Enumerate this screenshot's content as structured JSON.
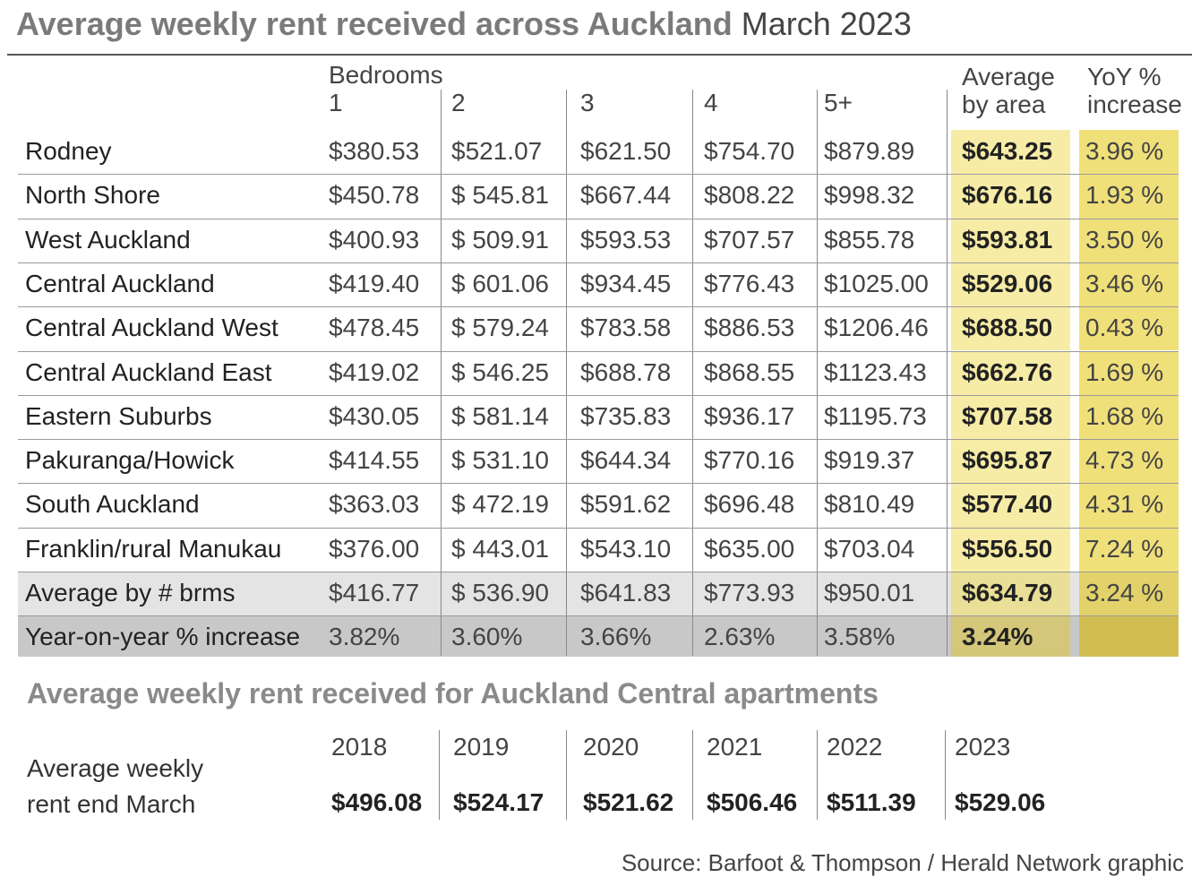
{
  "title": {
    "bold": "Average weekly rent received across Auckland",
    "date": "March 2023"
  },
  "table": {
    "bedrooms_label": "Bedrooms",
    "columns": [
      "1",
      "2",
      "3",
      "4",
      "5+"
    ],
    "average_header": "Average by area",
    "yoy_header": "YoY % increase",
    "rows": [
      {
        "name": "Rodney",
        "cells": [
          "$380.53",
          "$521.07",
          "$621.50",
          "$754.70",
          "$879.89"
        ],
        "average": "$643.25",
        "yoy": "3.96 %"
      },
      {
        "name": "North Shore",
        "cells": [
          "$450.78",
          "$ 545.81",
          "$667.44",
          "$808.22",
          "$998.32"
        ],
        "average": "$676.16",
        "yoy": "1.93 %"
      },
      {
        "name": "West Auckland",
        "cells": [
          "$400.93",
          "$ 509.91",
          "$593.53",
          "$707.57",
          "$855.78"
        ],
        "average": "$593.81",
        "yoy": "3.50 %"
      },
      {
        "name": "Central Auckland",
        "cells": [
          "$419.40",
          "$ 601.06",
          "$934.45",
          "$776.43",
          "$1025.00"
        ],
        "average": "$529.06",
        "yoy": "3.46 %"
      },
      {
        "name": "Central Auckland West",
        "cells": [
          "$478.45",
          "$ 579.24",
          "$783.58",
          "$886.53",
          "$1206.46"
        ],
        "average": "$688.50",
        "yoy": "0.43 %"
      },
      {
        "name": "Central Auckland East",
        "cells": [
          "$419.02",
          "$ 546.25",
          "$688.78",
          "$868.55",
          "$1123.43"
        ],
        "average": "$662.76",
        "yoy": "1.69 %"
      },
      {
        "name": "Eastern Suburbs",
        "cells": [
          "$430.05",
          "$ 581.14",
          "$735.83",
          "$936.17",
          "$1195.73"
        ],
        "average": "$707.58",
        "yoy": "1.68 %"
      },
      {
        "name": "Pakuranga/Howick",
        "cells": [
          "$414.55",
          "$ 531.10",
          "$644.34",
          "$770.16",
          "$919.37"
        ],
        "average": "$695.87",
        "yoy": "4.73 %"
      },
      {
        "name": "South Auckland",
        "cells": [
          "$363.03",
          "$ 472.19",
          "$591.62",
          "$696.48",
          "$810.49"
        ],
        "average": "$577.40",
        "yoy": "4.31 %"
      },
      {
        "name": "Franklin/rural Manukau",
        "cells": [
          "$376.00",
          "$ 443.01",
          "$543.10",
          "$635.00",
          "$703.04"
        ],
        "average": "$556.50",
        "yoy": "7.24 %"
      }
    ],
    "average_row": {
      "name": "Average by # brms",
      "cells": [
        "$416.77",
        "$ 536.90",
        "$641.83",
        "$773.93",
        "$950.01"
      ],
      "average": "$634.79",
      "yoy": "3.24 %"
    },
    "yoy_row": {
      "name": "Year-on-year % increase",
      "cells": [
        "3.82%",
        "3.60%",
        "3.66%",
        "2.63%",
        "3.58%"
      ],
      "average": "3.24%"
    }
  },
  "central": {
    "title": "Average weekly rent received for Auckland Central apartments",
    "label": "Average weekly rent end March",
    "years": [
      "2018",
      "2019",
      "2020",
      "2021",
      "2022",
      "2023"
    ],
    "values": [
      "$496.08",
      "$524.17",
      "$521.62",
      "$506.46",
      "$511.39",
      "$529.06"
    ]
  },
  "source": "Source: Barfoot & Thompson / Herald Network graphic"
}
